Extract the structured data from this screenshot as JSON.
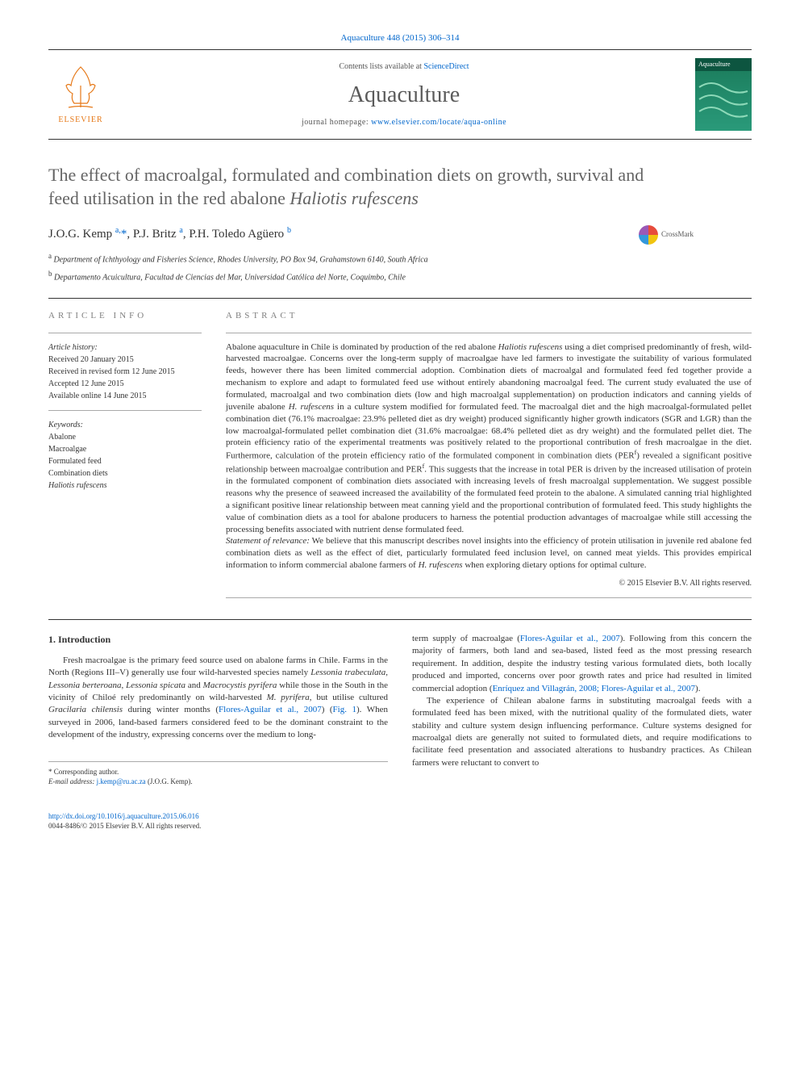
{
  "header": {
    "citation_link_text": "Aquaculture 448 (2015) 306–314",
    "citation_link_href": "#",
    "contents_text_pre": "Contents lists available at ",
    "contents_link_text": "ScienceDirect",
    "journal_name": "Aquaculture",
    "homepage_label": "journal homepage: ",
    "homepage_link_text": "www.elsevier.com/locate/aqua-online",
    "elsevier_label": "ELSEVIER",
    "cover_label": "Aquaculture"
  },
  "crossmark": {
    "label": "CrossMark"
  },
  "title_html": "The effect of macroalgal, formulated and combination diets on growth, survival and feed utilisation in the red abalone <em>Haliotis rufescens</em>",
  "authors_html": "J.O.G. Kemp <sup><a href=\"#\">a</a>,</sup><a href=\"#\">*</a>, P.J. Britz <sup><a href=\"#\">a</a></sup>, P.H. Toledo Agüero <sup><a href=\"#\">b</a></sup>",
  "affiliations": [
    {
      "sup": "a",
      "text": "Department of Ichthyology and Fisheries Science, Rhodes University, PO Box 94, Grahamstown 6140, South Africa"
    },
    {
      "sup": "b",
      "text": "Departamento Acuicultura, Facultad de Ciencias del Mar, Universidad Católica del Norte, Coquimbo, Chile"
    }
  ],
  "article_info": {
    "header": "ARTICLE INFO",
    "history_label": "Article history:",
    "history": [
      "Received 20 January 2015",
      "Received in revised form 12 June 2015",
      "Accepted 12 June 2015",
      "Available online 14 June 2015"
    ],
    "keywords_label": "Keywords:",
    "keywords": [
      "Abalone",
      "Macroalgae",
      "Formulated feed",
      "Combination diets"
    ],
    "keywords_italic": "Haliotis rufescens"
  },
  "abstract": {
    "header": "ABSTRACT",
    "body_html": "Abalone aquaculture in Chile is dominated by production of the red abalone <em>Haliotis rufescens</em> using a diet comprised predominantly of fresh, wild-harvested macroalgae. Concerns over the long-term supply of macroalgae have led farmers to investigate the suitability of various formulated feeds, however there has been limited commercial adoption. Combination diets of macroalgal and formulated feed fed together provide a mechanism to explore and adapt to formulated feed use without entirely abandoning macroalgal feed. The current study evaluated the use of formulated, macroalgal and two combination diets (low and high macroalgal supplementation) on production indicators and canning yields of juvenile abalone <em>H. rufescens</em> in a culture system modified for formulated feed. The macroalgal diet and the high macroalgal-formulated pellet combination diet (76.1% macroalgae: 23.9% pelleted diet as dry weight) produced significantly higher growth indicators (SGR and LGR) than the low macroalgal-formulated pellet combination diet (31.6% macroalgae: 68.4% pelleted diet as dry weight) and the formulated pellet diet. The protein efficiency ratio of the experimental treatments was positively related to the proportional contribution of fresh macroalgae in the diet. Furthermore, calculation of the protein efficiency ratio of the formulated component in combination diets (PER<sup>f</sup>) revealed a significant positive relationship between macroalgae contribution and PER<sup>f</sup>. This suggests that the increase in total PER is driven by the increased utilisation of protein in the formulated component of combination diets associated with increasing levels of fresh macroalgal supplementation. We suggest possible reasons why the presence of seaweed increased the availability of the formulated feed protein to the abalone. A simulated canning trial highlighted a significant positive linear relationship between meat canning yield and the proportional contribution of formulated feed. This study highlights the value of combination diets as a tool for abalone producers to harness the potential production advantages of macroalgae while still accessing the processing benefits associated with nutrient dense formulated feed.",
    "statement_label": "Statement of relevance:",
    "statement_text_html": " We believe that this manuscript describes novel insights into the efficiency of protein utilisation in juvenile red abalone fed combination diets as well as the effect of diet, particularly formulated feed inclusion level, on canned meat yields. This provides empirical information to inform commercial abalone farmers of <em>H. rufescens</em> when exploring dietary options for optimal culture.",
    "copyright": "© 2015 Elsevier B.V. All rights reserved."
  },
  "body": {
    "section_heading": "1. Introduction",
    "col1_html": "Fresh macroalgae is the primary feed source used on abalone farms in Chile. Farms in the North (Regions III–V) generally use four wild-harvested species namely <em>Lessonia trabeculata</em>, <em>Lessonia berteroana</em>, <em>Lessonia spicata</em> and <em>Macrocystis pyrifera</em> while those in the South in the vicinity of Chiloé rely predominantly on wild-harvested <em>M. pyrifera</em>, but utilise cultured <em>Gracilaria chilensis</em> during winter months (<a href=\"#\">Flores-Aguilar et al., 2007</a>) (<a href=\"#\">Fig. 1</a>). When surveyed in 2006, land-based farmers considered feed to be the dominant constraint to the development of the industry, expressing concerns over the medium to long-",
    "col2_html": "term supply of macroalgae (<a href=\"#\">Flores-Aguilar et al., 2007</a>). Following from this concern the majority of farmers, both land and sea-based, listed feed as the most pressing research requirement. In addition, despite the industry testing various formulated diets, both locally produced and imported, concerns over poor growth rates and price had resulted in limited commercial adoption (<a href=\"#\">Enríquez and Villagrán, 2008; Flores-Aguilar et al., 2007</a>).",
    "col2_p2_html": "The experience of Chilean abalone farms in substituting macroalgal feeds with a formulated feed has been mixed, with the nutritional quality of the formulated diets, water stability and culture system design influencing performance. Culture systems designed for macroalgal diets are generally not suited to formulated diets, and require modifications to facilitate feed presentation and associated alterations to husbandry practices. As Chilean farmers were reluctant to convert to"
  },
  "footer": {
    "corresponding_label": "* Corresponding author.",
    "email_label": "E-mail address:",
    "email_link_text": "j.kemp@ru.ac.za",
    "email_attr": " (J.O.G. Kemp).",
    "doi_link_text": "http://dx.doi.org/10.1016/j.aquaculture.2015.06.016",
    "issn_line": "0044-8486/© 2015 Elsevier B.V. All rights reserved."
  },
  "colors": {
    "link": "#0066cc",
    "elsevier_orange": "#e67817",
    "title_gray": "#646464",
    "rule": "#333333"
  },
  "typography": {
    "body_pt": 11,
    "title_pt": 22,
    "journal_name_pt": 28,
    "info_pt": 10,
    "footer_pt": 9
  }
}
